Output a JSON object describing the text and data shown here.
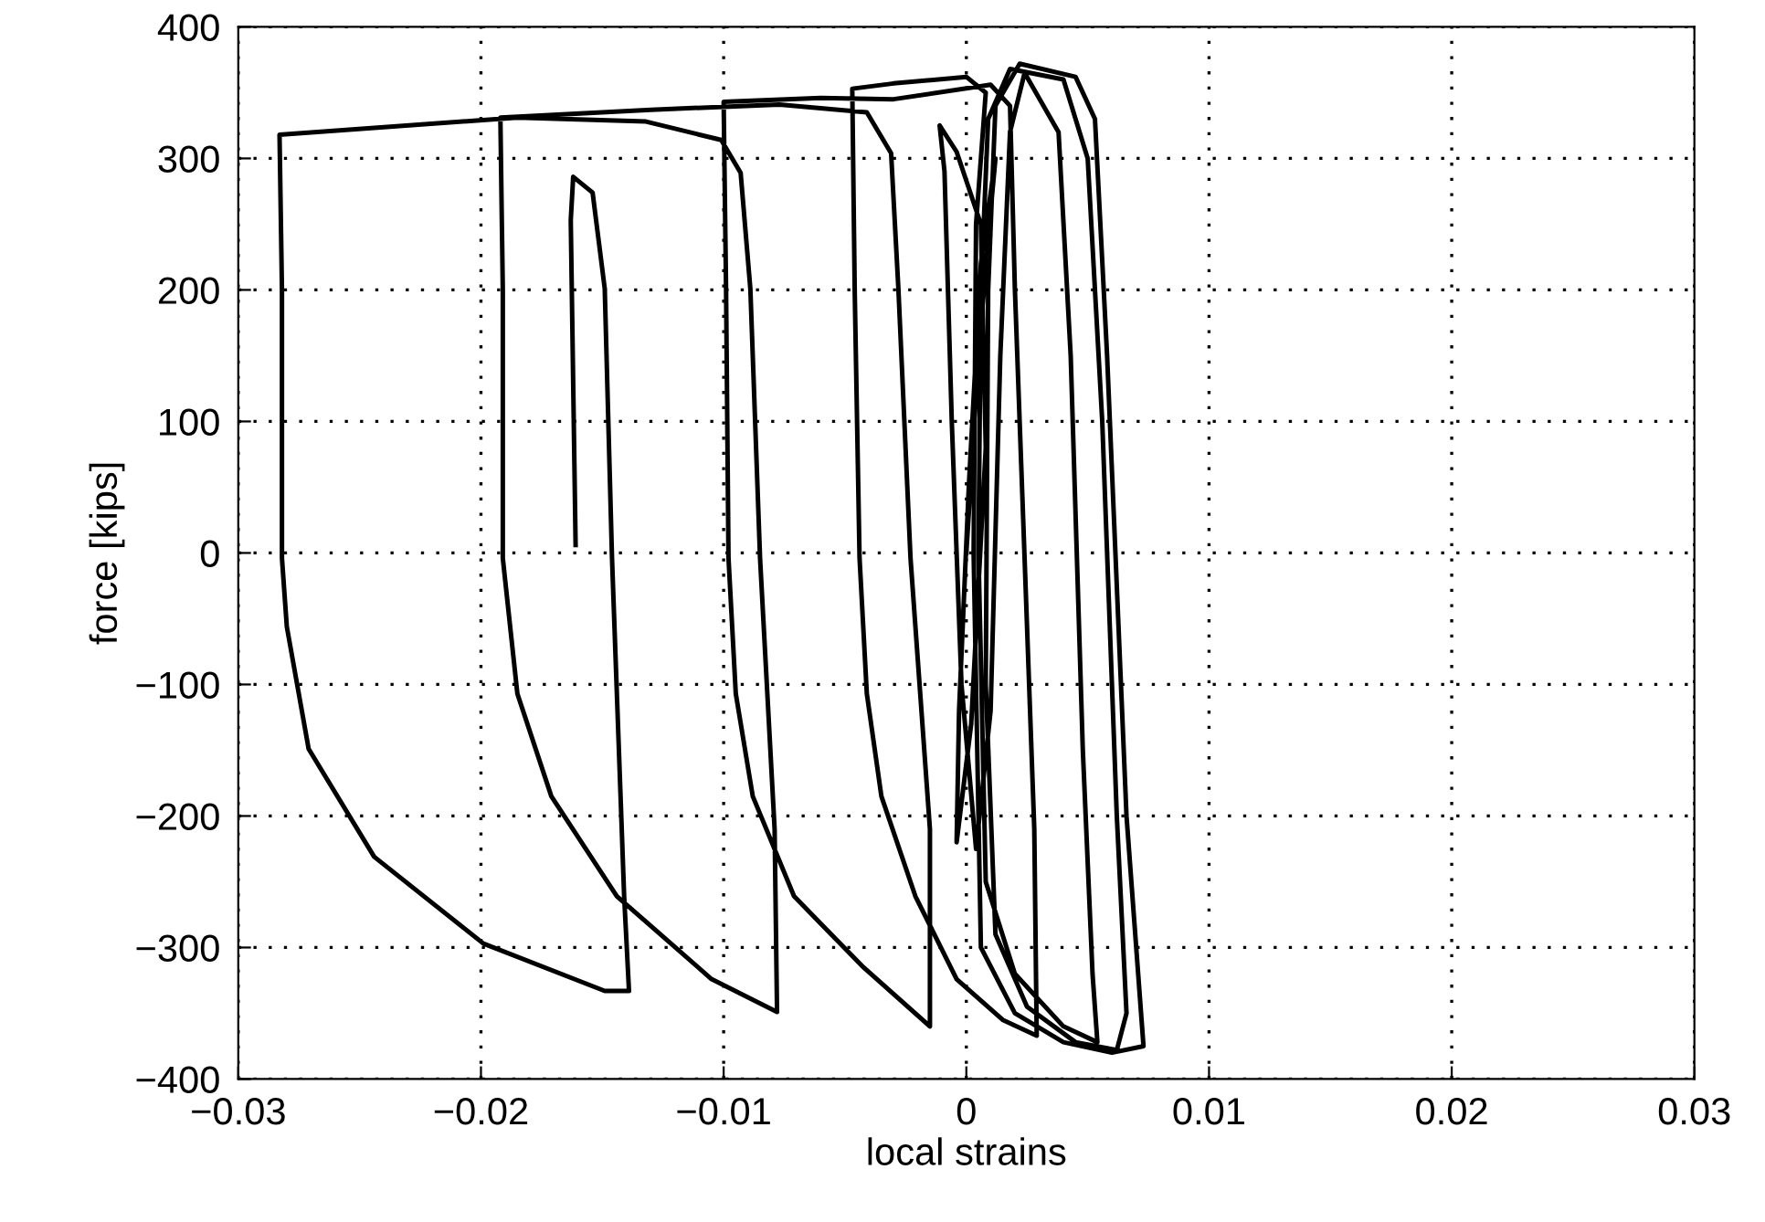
{
  "chart_data": {
    "type": "line",
    "xlabel": "local strains",
    "ylabel": "force [kips]",
    "xlim": [
      -0.03,
      0.03
    ],
    "ylim": [
      -400,
      400
    ],
    "xticks": [
      {
        "value": -0.03,
        "label": "−0.03"
      },
      {
        "value": -0.02,
        "label": "−0.02"
      },
      {
        "value": -0.01,
        "label": "−0.01"
      },
      0,
      0.01,
      0.02,
      0.03
    ],
    "yticks": [
      {
        "value": -400,
        "label": "−400"
      },
      {
        "value": -300,
        "label": "−300"
      },
      {
        "value": -200,
        "label": "−200"
      },
      {
        "value": -100,
        "label": "−100"
      },
      0,
      100,
      200,
      300,
      400
    ],
    "grid": true,
    "marker": "none",
    "line_style": "solid",
    "series": [
      {
        "color": "#000000",
        "x": [
          0,
          0.0005,
          0.001,
          0.0012,
          0.0006,
          0.0001,
          -0.0003,
          -0.0004,
          0.0002,
          0.0008,
          0.0006,
          -0.0004,
          -0.0011,
          -0.0009,
          -0.0006,
          -0.0002,
          0.0004,
          0.001,
          0.0014,
          0.0018,
          0.0024,
          0.0038,
          0.0043,
          0.0048,
          0.0052,
          0.0054,
          0.004,
          0.002,
          0.0008,
          0.0005,
          0.0006,
          0.0009,
          0.0018,
          0.004,
          0.005,
          0.0056,
          0.0062,
          0.0066,
          0.0062,
          0.0045,
          0.0025,
          0.0012,
          0.0008,
          0.0009,
          0.0012,
          0.0022,
          0.0045,
          0.0053,
          0.0058,
          0.0066,
          0.0072,
          0.0073,
          0.006,
          0.004,
          0.002,
          0.0006,
          0.0003,
          0.0004,
          0.0008,
          0.0,
          -0.003,
          -0.0047,
          -0.0046,
          -0.0044,
          -0.0041,
          -0.0035,
          -0.0021,
          -0.0004,
          0.0015,
          0.0029,
          0.0028,
          0.0024,
          0.002,
          0.0018,
          0.001,
          -0.003,
          -0.006,
          -0.01,
          -0.0099,
          -0.0098,
          -0.0095,
          -0.0088,
          -0.0071,
          -0.0043,
          -0.0015,
          -0.0015,
          -0.0023,
          -0.0028,
          -0.0031,
          -0.0041,
          -0.0077,
          -0.013,
          -0.0192,
          -0.0191,
          -0.0191,
          -0.0185,
          -0.0171,
          -0.0144,
          -0.0105,
          -0.0078,
          -0.0079,
          -0.0085,
          -0.0089,
          -0.0093,
          -0.0101,
          -0.0132,
          -0.0185,
          -0.0283,
          -0.0282,
          -0.0282,
          -0.028,
          -0.0271,
          -0.0244,
          -0.0199,
          -0.0149,
          -0.0139,
          -0.0141,
          -0.0146,
          -0.0149,
          -0.0154,
          -0.0162,
          -0.0163,
          -0.0161
        ],
        "values": [
          0,
          150,
          260,
          300,
          220,
          50,
          -120,
          -220,
          -130,
          80,
          250,
          305,
          325,
          290,
          100,
          -100,
          -225,
          -120,
          150,
          320,
          365,
          320,
          150,
          -150,
          -320,
          -372,
          -360,
          -320,
          -250,
          0,
          200,
          330,
          368,
          360,
          300,
          100,
          -200,
          -350,
          -378,
          -372,
          -345,
          -290,
          -100,
          200,
          340,
          372,
          362,
          330,
          150,
          -200,
          -350,
          -375,
          -380,
          -372,
          -350,
          -300,
          0,
          250,
          350,
          362,
          357,
          353,
          200,
          -4,
          -107,
          -185,
          -261,
          -324,
          -355,
          -367,
          -210,
          -4,
          201,
          340,
          356,
          345,
          346,
          343,
          200,
          -4,
          -107,
          -185,
          -261,
          -314,
          -360,
          -210,
          -4,
          201,
          304,
          335,
          341,
          337,
          331,
          200,
          -4,
          -107,
          -185,
          -261,
          -324,
          -349,
          -210,
          -4,
          201,
          289,
          314,
          328,
          331,
          318,
          200,
          -4,
          -56,
          -149,
          -231,
          -297,
          -333,
          -333,
          -261,
          -4,
          201,
          274,
          286,
          253,
          6
        ]
      }
    ]
  }
}
